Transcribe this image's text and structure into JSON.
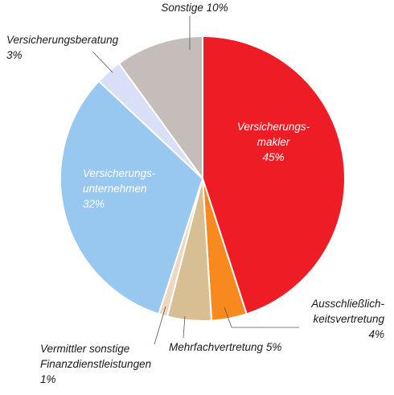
{
  "chart_data": {
    "type": "pie",
    "categories": [
      [
        "Versicherungs-",
        "makler"
      ],
      [
        "Ausschließlich-",
        "keitsvertretung"
      ],
      [
        "Mehrfachvertretung"
      ],
      [
        "Vermittler sonstige",
        "Finanzdienstleistungen"
      ],
      [
        "Versicherungs-",
        "unternehmen"
      ],
      [
        "Versicherungsberatung"
      ],
      [
        "Sonstige"
      ]
    ],
    "values": [
      45,
      4,
      5,
      1,
      32,
      3,
      10
    ],
    "value_labels": [
      "45%",
      "4%",
      "5%",
      "1%",
      "32%",
      "3%",
      "10%"
    ],
    "colors": [
      "#ee1c25",
      "#f7891e",
      "#d8bf93",
      "#efd6c0",
      "#98c8ef",
      "#d8dff6",
      "#c5bdb9"
    ]
  }
}
